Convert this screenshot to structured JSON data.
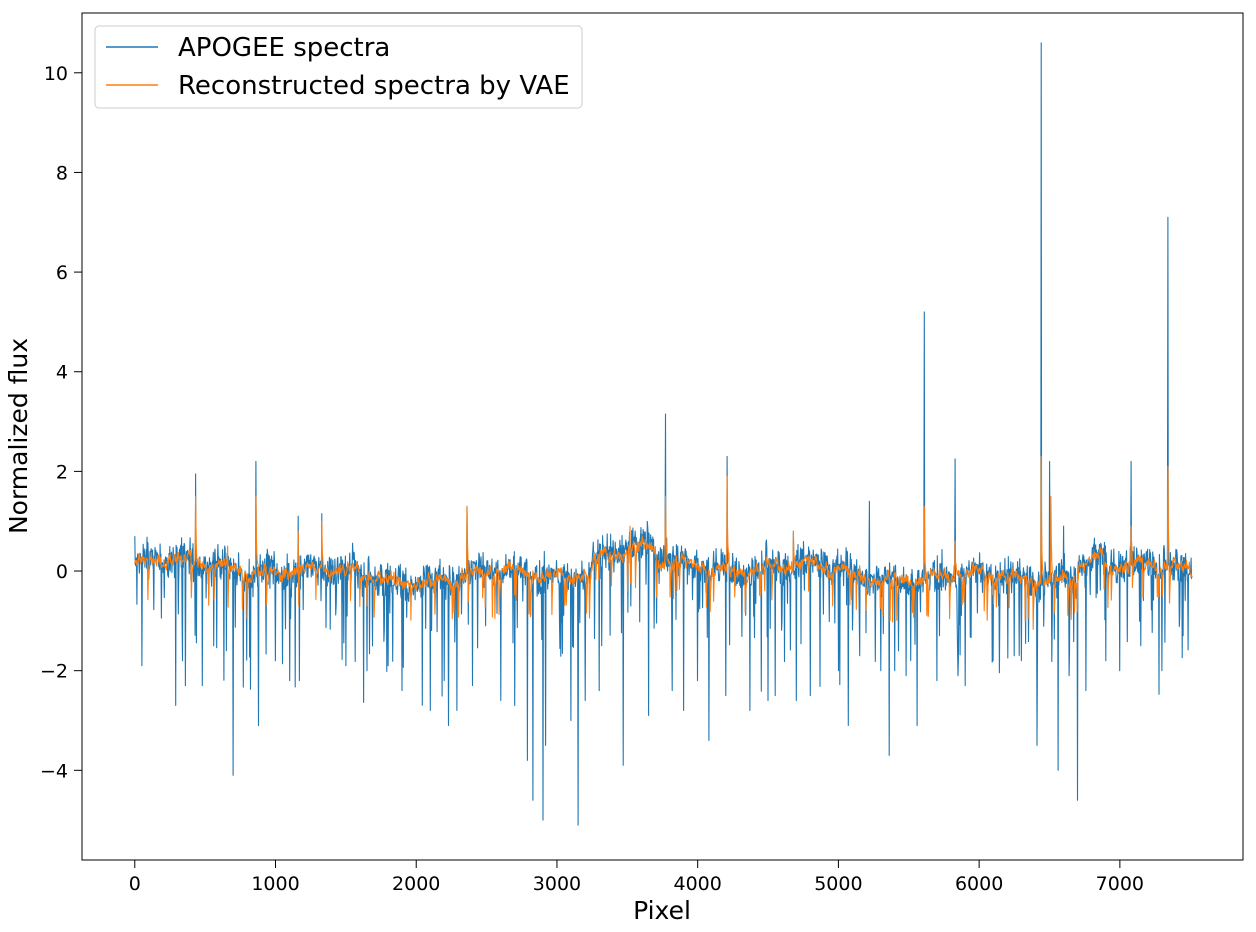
{
  "chart_data": {
    "type": "line",
    "title": "",
    "xlabel": "Pixel",
    "ylabel": "Normalized flux",
    "xlim": [
      -375,
      7875
    ],
    "ylim": [
      -5.8,
      11.2
    ],
    "xticks": [
      0,
      1000,
      2000,
      3000,
      4000,
      5000,
      6000,
      7000
    ],
    "yticks": [
      -4,
      -2,
      0,
      2,
      4,
      6,
      8,
      10
    ],
    "ytick_labels": [
      "−4",
      "−2",
      "0",
      "2",
      "4",
      "6",
      "8",
      "10"
    ],
    "grid": false,
    "legend_position": "top-left",
    "n_pixels": 7514,
    "series": [
      {
        "name": "APOGEE spectra",
        "color": "#1f77b4",
        "line_width": 1.1,
        "spikes": [
          [
            0,
            0.7
          ],
          [
            50,
            -1.9
          ],
          [
            290,
            -2.7
          ],
          [
            340,
            -1.8
          ],
          [
            360,
            -2.3
          ],
          [
            432,
            1.95
          ],
          [
            480,
            -2.3
          ],
          [
            560,
            -1.5
          ],
          [
            650,
            -1.6
          ],
          [
            700,
            -4.1
          ],
          [
            860,
            2.2
          ],
          [
            880,
            -3.1
          ],
          [
            1000,
            -1.8
          ],
          [
            1100,
            -2.2
          ],
          [
            1160,
            1.1
          ],
          [
            1170,
            -2.2
          ],
          [
            1330,
            1.15
          ],
          [
            1500,
            -1.9
          ],
          [
            1650,
            -2.0
          ],
          [
            1800,
            -1.9
          ],
          [
            1900,
            -2.4
          ],
          [
            2100,
            -2.8
          ],
          [
            2200,
            -2.2
          ],
          [
            2230,
            -3.1
          ],
          [
            2290,
            -2.8
          ],
          [
            2360,
            1.3
          ],
          [
            2400,
            -2.3
          ],
          [
            2600,
            -2.6
          ],
          [
            2700,
            -2.7
          ],
          [
            2790,
            -3.8
          ],
          [
            2830,
            -4.6
          ],
          [
            2900,
            -5.0
          ],
          [
            2920,
            -3.5
          ],
          [
            3100,
            -3.0
          ],
          [
            3150,
            -5.1
          ],
          [
            3200,
            -2.6
          ],
          [
            3300,
            -2.4
          ],
          [
            3470,
            -3.9
          ],
          [
            3650,
            -2.9
          ],
          [
            3770,
            3.15
          ],
          [
            3820,
            -2.4
          ],
          [
            3900,
            -2.8
          ],
          [
            4000,
            -2.2
          ],
          [
            4080,
            -3.4
          ],
          [
            4210,
            2.3
          ],
          [
            4200,
            -2.5
          ],
          [
            4370,
            -2.8
          ],
          [
            4500,
            -2.6
          ],
          [
            4550,
            -2.5
          ],
          [
            4680,
            0.8
          ],
          [
            4700,
            -2.6
          ],
          [
            4800,
            -2.5
          ],
          [
            5000,
            -2.0
          ],
          [
            5070,
            -3.1
          ],
          [
            5150,
            -1.7
          ],
          [
            5220,
            1.4
          ],
          [
            5300,
            -2.0
          ],
          [
            5360,
            -3.7
          ],
          [
            5400,
            -2.0
          ],
          [
            5480,
            -2.1
          ],
          [
            5560,
            -3.1
          ],
          [
            5610,
            5.2
          ],
          [
            5700,
            -2.2
          ],
          [
            5830,
            2.25
          ],
          [
            5850,
            -2.1
          ],
          [
            5900,
            -2.3
          ],
          [
            6100,
            -1.8
          ],
          [
            6250,
            -1.7
          ],
          [
            6300,
            -1.8
          ],
          [
            6410,
            -3.5
          ],
          [
            6440,
            10.6
          ],
          [
            6500,
            2.2
          ],
          [
            6560,
            -4.0
          ],
          [
            6600,
            0.9
          ],
          [
            6640,
            -2.1
          ],
          [
            6700,
            -4.6
          ],
          [
            6760,
            -2.4
          ],
          [
            6900,
            -1.8
          ],
          [
            7000,
            -2.0
          ],
          [
            7080,
            2.2
          ],
          [
            7150,
            -1.5
          ],
          [
            7300,
            -2.0
          ],
          [
            7340,
            7.1
          ],
          [
            7450,
            -1.3
          ],
          [
            7514,
            -0.4
          ]
        ]
      },
      {
        "name": "Reconstructed spectra by VAE",
        "color": "#ff7f0e",
        "line_width": 1.1,
        "spikes": [
          [
            432,
            1.5
          ],
          [
            660,
            0.5
          ],
          [
            860,
            1.5
          ],
          [
            1160,
            0.8
          ],
          [
            1330,
            1.0
          ],
          [
            2360,
            1.3
          ],
          [
            3520,
            0.9
          ],
          [
            3770,
            1.5
          ],
          [
            4210,
            1.9
          ],
          [
            4680,
            0.8
          ],
          [
            5610,
            1.3
          ],
          [
            5830,
            0.6
          ],
          [
            6440,
            2.3
          ],
          [
            6510,
            1.5
          ],
          [
            7080,
            0.9
          ],
          [
            7340,
            2.1
          ]
        ]
      }
    ]
  }
}
